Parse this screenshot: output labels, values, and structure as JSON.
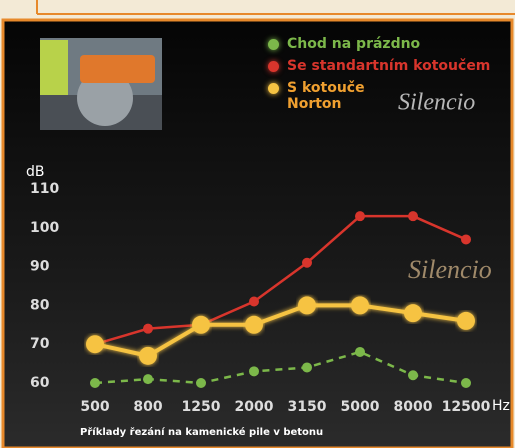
{
  "chart_data": {
    "type": "line",
    "y_label": "dB",
    "x_label": "Hz",
    "caption": "Příklady řezání na kamenické pile v betonu",
    "brand_labels": [
      "Silencio",
      "Silencio"
    ],
    "categories": [
      "500",
      "800",
      "1250",
      "2000",
      "3150",
      "5000",
      "8000",
      "12500"
    ],
    "ylim": [
      56,
      114
    ],
    "yticks": [
      60,
      70,
      80,
      90,
      100,
      110
    ],
    "series": [
      {
        "name": "Chod na prázdno",
        "color": "#7cb84a",
        "dashed": true,
        "values": [
          60,
          61,
          60,
          63,
          64,
          68,
          62,
          60
        ]
      },
      {
        "name": "Se standartním kotoučem",
        "color": "#d8352c",
        "dashed": false,
        "values": [
          70,
          74,
          75,
          81,
          91,
          103,
          103,
          97
        ]
      },
      {
        "name": "S kotouče Norton",
        "color": "#f6c343",
        "dashed": false,
        "values": [
          70,
          67,
          75,
          75,
          80,
          80,
          78,
          76
        ]
      }
    ]
  }
}
